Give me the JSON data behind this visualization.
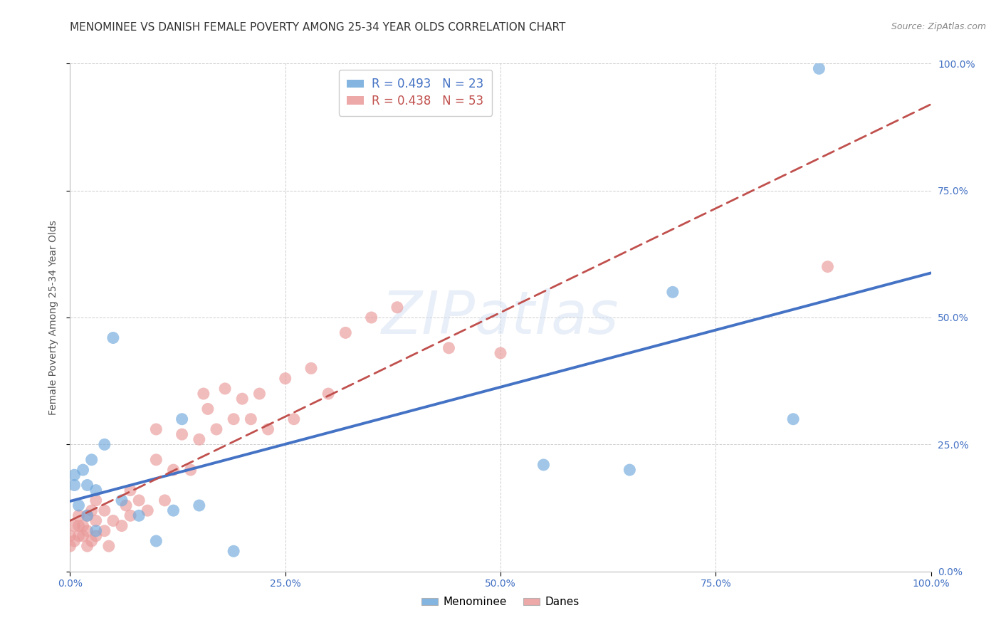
{
  "title": "MENOMINEE VS DANISH FEMALE POVERTY AMONG 25-34 YEAR OLDS CORRELATION CHART",
  "source": "Source: ZipAtlas.com",
  "ylabel": "Female Poverty Among 25-34 Year Olds",
  "xlim": [
    0.0,
    1.0
  ],
  "ylim": [
    0.0,
    1.0
  ],
  "xtick_vals": [
    0.0,
    0.25,
    0.5,
    0.75,
    1.0
  ],
  "ytick_vals": [
    0.0,
    0.25,
    0.5,
    0.75,
    1.0
  ],
  "menominee_color": "#6fa8dc",
  "danes_color": "#ea9999",
  "menominee_R": 0.493,
  "menominee_N": 23,
  "danes_R": 0.438,
  "danes_N": 53,
  "menominee_x": [
    0.005,
    0.005,
    0.01,
    0.015,
    0.02,
    0.02,
    0.025,
    0.03,
    0.03,
    0.04,
    0.05,
    0.06,
    0.08,
    0.1,
    0.12,
    0.13,
    0.15,
    0.19,
    0.55,
    0.65,
    0.7,
    0.84,
    0.87
  ],
  "menominee_y": [
    0.19,
    0.17,
    0.13,
    0.2,
    0.11,
    0.17,
    0.22,
    0.08,
    0.16,
    0.25,
    0.46,
    0.14,
    0.11,
    0.06,
    0.12,
    0.3,
    0.13,
    0.04,
    0.21,
    0.2,
    0.55,
    0.3,
    0.99
  ],
  "danes_x": [
    0.0,
    0.0,
    0.005,
    0.005,
    0.01,
    0.01,
    0.01,
    0.015,
    0.015,
    0.02,
    0.02,
    0.02,
    0.025,
    0.025,
    0.03,
    0.03,
    0.03,
    0.04,
    0.04,
    0.045,
    0.05,
    0.06,
    0.065,
    0.07,
    0.07,
    0.08,
    0.09,
    0.1,
    0.1,
    0.11,
    0.12,
    0.13,
    0.14,
    0.15,
    0.155,
    0.16,
    0.17,
    0.18,
    0.19,
    0.2,
    0.21,
    0.22,
    0.23,
    0.25,
    0.26,
    0.28,
    0.3,
    0.32,
    0.35,
    0.38,
    0.44,
    0.5,
    0.88
  ],
  "danes_y": [
    0.05,
    0.07,
    0.06,
    0.09,
    0.07,
    0.09,
    0.11,
    0.07,
    0.09,
    0.05,
    0.08,
    0.11,
    0.06,
    0.12,
    0.07,
    0.1,
    0.14,
    0.08,
    0.12,
    0.05,
    0.1,
    0.09,
    0.13,
    0.11,
    0.16,
    0.14,
    0.12,
    0.22,
    0.28,
    0.14,
    0.2,
    0.27,
    0.2,
    0.26,
    0.35,
    0.32,
    0.28,
    0.36,
    0.3,
    0.34,
    0.3,
    0.35,
    0.28,
    0.38,
    0.3,
    0.4,
    0.35,
    0.47,
    0.5,
    0.52,
    0.44,
    0.43,
    0.6
  ],
  "background_color": "#ffffff",
  "grid_color": "#c8c8c8",
  "watermark_text": "ZIPatlas",
  "watermark_color": "#d0ddf0",
  "legend_men_color": "#4472c4",
  "legend_dan_color": "#c0504d",
  "title_fontsize": 11,
  "axis_label_fontsize": 10,
  "tick_fontsize": 10,
  "source_fontsize": 9
}
